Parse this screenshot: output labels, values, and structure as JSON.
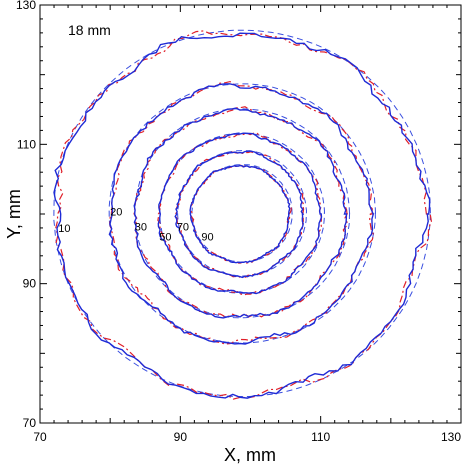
{
  "chart_data": {
    "type": "line",
    "title": "",
    "annotation": "18 mm",
    "xlabel": "X, mm",
    "ylabel": "Y, mm",
    "xlim": [
      70,
      130
    ],
    "ylim": [
      70,
      130
    ],
    "xticks": [
      "70",
      "90",
      "110",
      "130"
    ],
    "yticks": [
      "70",
      "90",
      "110",
      "130"
    ],
    "grid": false,
    "center": [
      98.5,
      100
    ],
    "contours": [
      {
        "label": "10",
        "radius": 26.3,
        "label_pos": [
          72.6,
          97.4
        ]
      },
      {
        "label": "20",
        "radius": 18.6,
        "label_pos": [
          80.0,
          99.8
        ]
      },
      {
        "label": "30",
        "radius": 15.0,
        "label_pos": [
          83.5,
          97.6
        ]
      },
      {
        "label": "50",
        "radius": 11.5,
        "label_pos": [
          87.0,
          96.2
        ]
      },
      {
        "label": "70",
        "radius": 9.0,
        "label_pos": [
          89.5,
          97.6
        ]
      },
      {
        "label": "90",
        "radius": 7.0,
        "label_pos": [
          93.0,
          96.2
        ]
      }
    ],
    "series": [
      {
        "style": "solid",
        "color": "#1f2bd6"
      },
      {
        "style": "dash-dot",
        "color": "#e0202a"
      },
      {
        "style": "dashed",
        "color": "#3a4fe0"
      }
    ]
  }
}
